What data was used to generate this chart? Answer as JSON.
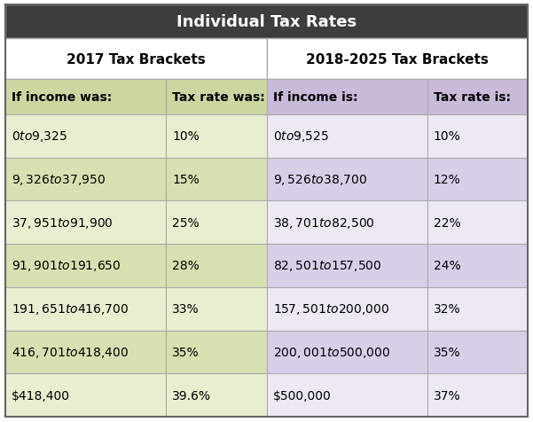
{
  "title": "Individual Tax Rates",
  "title_bg": "#3d3d3d",
  "title_color": "#ffffff",
  "header1": "2017 Tax Brackets",
  "header2": "2018-2025 Tax Brackets",
  "header_bg": "#ffffff",
  "col_headers": [
    "If income was:",
    "Tax rate was:",
    "If income is:",
    "Tax rate is:"
  ],
  "col_header_bg_left": "#ccd6a0",
  "col_header_bg_right": "#c8bad8",
  "rows_2017": [
    [
      "$0 to $9,325",
      "10%"
    ],
    [
      "$9,326 to $37,950",
      "15%"
    ],
    [
      "$37,951 to $91,900",
      "25%"
    ],
    [
      "$91,901 to $191,650",
      "28%"
    ],
    [
      "$191,651 to $416,700",
      "33%"
    ],
    [
      "$416,701 to $418,400",
      "35%"
    ],
    [
      "$418,400",
      "39.6%"
    ]
  ],
  "rows_2018": [
    [
      "$0 to $9,525",
      "10%"
    ],
    [
      "$9,526 to $38,700",
      "12%"
    ],
    [
      "$38,701 to $82,500",
      "22%"
    ],
    [
      "$82,501 to $157,500",
      "24%"
    ],
    [
      "$157,501 to $200,000",
      "32%"
    ],
    [
      "$200,001 to $500,000",
      "35%"
    ],
    [
      "$500,000",
      "37%"
    ]
  ],
  "row_bg_left_even": "#e8efd0",
  "row_bg_left_odd": "#d6e0b0",
  "row_bg_right_even": "#ede8f3",
  "row_bg_right_odd": "#d8cee8",
  "border_color": "#aaaaaa",
  "text_color": "#000000",
  "figsize": [
    6.01,
    4.77
  ],
  "dpi": 100
}
